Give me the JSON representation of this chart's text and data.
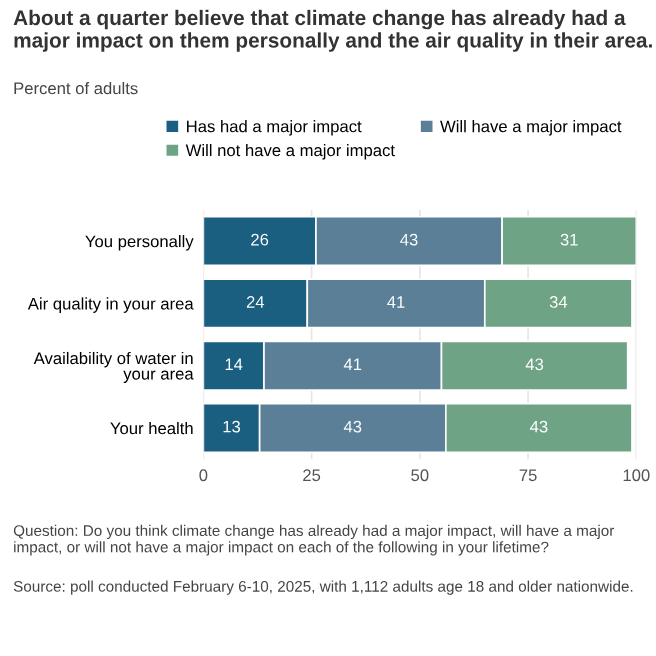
{
  "chart_data": {
    "type": "bar",
    "orientation": "horizontal",
    "stacked": true,
    "title": "About a quarter believe that climate change has already had a major impact on them personally and the air quality in their area.",
    "subtitle": "Percent of adults",
    "categories": [
      "You personally",
      "Air quality in your area",
      "Availability of water in your area",
      "Your health"
    ],
    "series": [
      {
        "name": "Has had a major impact",
        "color": "#1a5e80",
        "values": [
          26,
          24,
          14,
          13
        ]
      },
      {
        "name": "Will have a major impact",
        "color": "#5b7f96",
        "values": [
          43,
          41,
          41,
          43
        ]
      },
      {
        "name": "Will not have a major impact",
        "color": "#6fa386",
        "values": [
          31,
          34,
          43,
          43
        ]
      }
    ],
    "xlim": [
      0,
      100
    ],
    "xticks": [
      0,
      25,
      50,
      75,
      100
    ],
    "grid": "x",
    "legend": "top",
    "data_labels": true,
    "annotations": [
      "Question: Do you think climate change has already had a major impact, will have a major impact, or will not have a major impact on each of the following in your lifetime?",
      "Source: poll conducted February 6-10, 2025, with 1,112 adults age 18 and older nationwide."
    ]
  }
}
